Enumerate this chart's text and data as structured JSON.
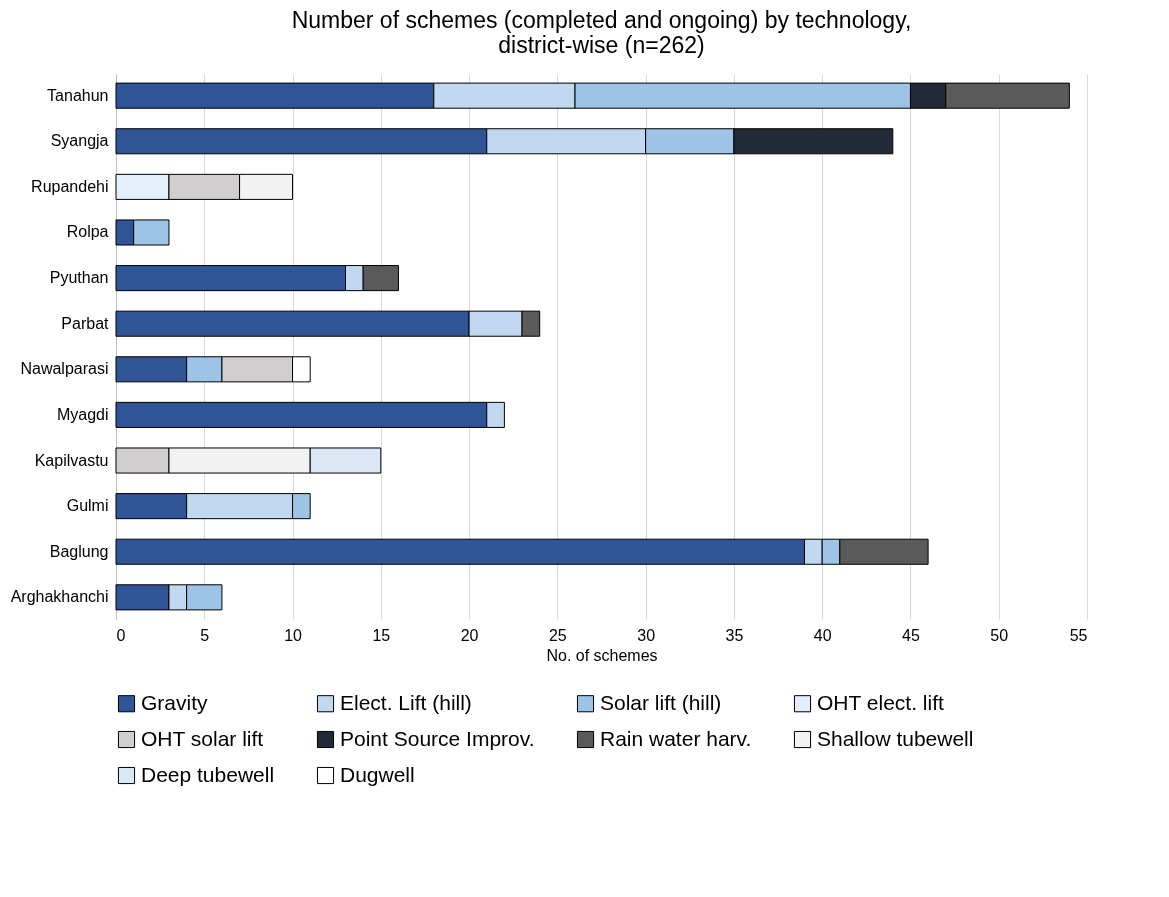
{
  "chart_data": {
    "type": "bar",
    "orientation": "horizontal",
    "stacked": true,
    "title": "Number of schemes (completed and ongoing) by technology, district-wise (n=262)",
    "xlabel": "No. of schemes",
    "categories": [
      "Tanahun",
      "Syangja",
      "Rupandehi",
      "Rolpa",
      "Pyuthan",
      "Parbat",
      "Nawalparasi",
      "Myagdi",
      "Kapilvastu",
      "Gulmi",
      "Baglung",
      "Arghakhanchi"
    ],
    "series": [
      {
        "name": "Gravity",
        "color": "#2f5597",
        "values": [
          18,
          21,
          null,
          1,
          13,
          20,
          4,
          21,
          null,
          4,
          39,
          3
        ]
      },
      {
        "name": "Elect. Lift (hill)",
        "color": "#c0d8f0",
        "values": [
          8,
          9,
          null,
          null,
          1,
          3,
          null,
          1,
          null,
          6,
          1,
          1
        ]
      },
      {
        "name": "Solar lift (hill)",
        "color": "#9dc3e6",
        "values": [
          19,
          5,
          null,
          2,
          null,
          null,
          2,
          null,
          null,
          1,
          1,
          2
        ]
      },
      {
        "name": "OHT elect. lift",
        "color": "#e2eefa",
        "values": [
          null,
          null,
          3,
          null,
          null,
          null,
          null,
          null,
          null,
          null,
          null,
          null
        ]
      },
      {
        "name": "OHT solar lift",
        "color": "#d0cece",
        "values": [
          null,
          null,
          4,
          null,
          null,
          null,
          4,
          null,
          3,
          null,
          null,
          null
        ]
      },
      {
        "name": "Point Source Improv.",
        "color": "#222a35",
        "values": [
          2,
          9,
          null,
          null,
          null,
          null,
          null,
          null,
          null,
          null,
          null,
          null
        ]
      },
      {
        "name": "Rain water harv.",
        "color": "#5a5a5a",
        "values": [
          7,
          null,
          null,
          null,
          2,
          1,
          null,
          null,
          null,
          null,
          5,
          null
        ]
      },
      {
        "name": "Shallow tubewell",
        "color": "#f2f2f2",
        "values": [
          null,
          null,
          3,
          null,
          null,
          null,
          null,
          null,
          8,
          null,
          null,
          null
        ]
      },
      {
        "name": "Deep tubewell",
        "color": "#dae8f5",
        "values": [
          null,
          null,
          null,
          null,
          null,
          null,
          null,
          null,
          4,
          null,
          null,
          null
        ]
      },
      {
        "name": "Dugwell",
        "color": "#ffffff",
        "values": [
          null,
          null,
          null,
          null,
          null,
          null,
          1,
          null,
          null,
          null,
          null,
          null
        ]
      }
    ],
    "xlim": [
      0,
      55
    ],
    "xticks": [
      0,
      5,
      10,
      15,
      20,
      25,
      30,
      35,
      40,
      45,
      50,
      55
    ],
    "grid": "x",
    "legend": "bottom"
  }
}
